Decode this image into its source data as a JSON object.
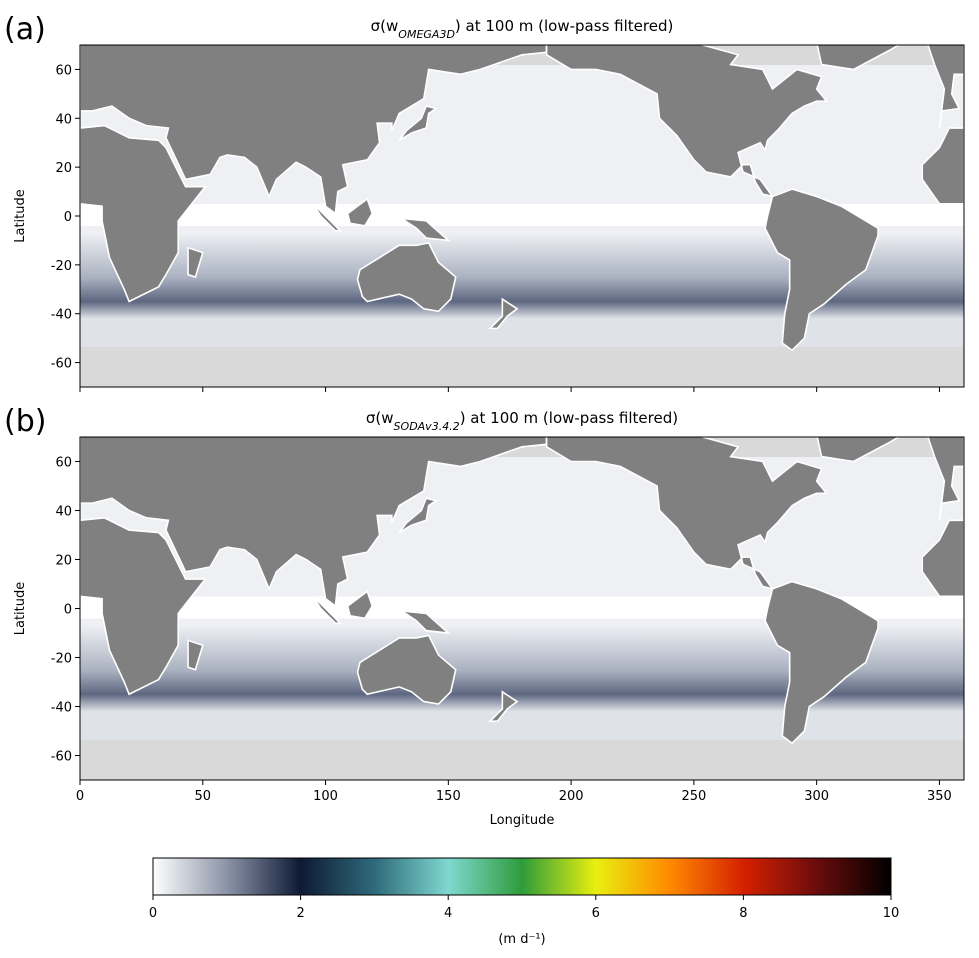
{
  "chart_data": [
    {
      "type": "map",
      "panel_label": "(a)",
      "title_parts": [
        "σ(w",
        "OMEGA3D",
        ") at 100 m (low-pass filtered)"
      ],
      "ylabel": "Latitude",
      "xlim": [
        0,
        360
      ],
      "ylim": [
        -70,
        70
      ],
      "xticks": [
        0,
        50,
        100,
        150,
        200,
        250,
        300,
        350
      ],
      "yticks": [
        -60,
        -40,
        -20,
        0,
        20,
        40,
        60
      ]
    },
    {
      "type": "map",
      "panel_label": "(b)",
      "title_parts": [
        "σ(w",
        "SODAv3.4.2",
        ") at 100 m (low-pass filtered)"
      ],
      "ylabel": "Latitude",
      "xlabel": "Longitude",
      "xlim": [
        0,
        360
      ],
      "ylim": [
        -70,
        70
      ],
      "xticks": [
        0,
        50,
        100,
        150,
        200,
        250,
        300,
        350
      ],
      "yticks": [
        -60,
        -40,
        -20,
        0,
        20,
        40,
        60
      ]
    }
  ],
  "colorbar": {
    "label": "(m d⁻¹)",
    "lim": [
      0,
      10
    ],
    "ticks": [
      0,
      2,
      4,
      6,
      8,
      10
    ],
    "colors": [
      "#ffffff",
      "#8b93a6",
      "#0e1a35",
      "#2e6a7a",
      "#7fd8d0",
      "#2e9c3a",
      "#e8ef10",
      "#ff8a00",
      "#d52000",
      "#6a0c0c",
      "#000000"
    ]
  }
}
